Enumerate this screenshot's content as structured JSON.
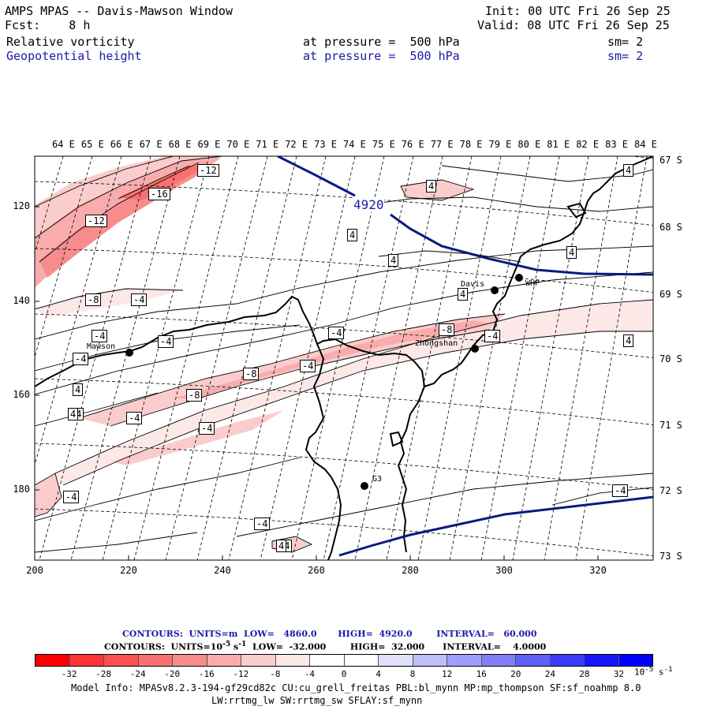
{
  "header": {
    "title": "AMPS MPAS -- Davis-Mawson Window",
    "fcst": "Fcst:    8 h",
    "init": "Init: 00 UTC Fri 26 Sep 25",
    "valid": "Valid: 08 UTC Fri 26 Sep 25",
    "field1_name": "Relative vorticity",
    "field1_level": "at pressure =  500 hPa",
    "field1_sm": "sm= 2",
    "field2_name": "Geopotential height",
    "field2_level": "at pressure =  500 hPa",
    "field2_sm": "sm= 2"
  },
  "map": {
    "lon_labels": [
      "64 E",
      "65 E",
      "66 E",
      "67 E",
      "68 E",
      "69 E",
      "70 E",
      "71 E",
      "72 E",
      "73 E",
      "74 E",
      "75 E",
      "76 E",
      "77 E",
      "78 E",
      "79 E",
      "80 E",
      "81 E",
      "82 E",
      "83 E",
      "84 E"
    ],
    "lat_labels": [
      "67 S",
      "68 S",
      "69 S",
      "70 S",
      "71 S",
      "72 S",
      "73 S"
    ],
    "x_ticks": [
      "200",
      "220",
      "240",
      "260",
      "280",
      "300",
      "320"
    ],
    "y_ticks": [
      "120",
      "140",
      "160",
      "180"
    ],
    "stations": [
      {
        "name": "Davis"
      },
      {
        "name": "WHP"
      },
      {
        "name": "Mawson"
      },
      {
        "name": "Zhongshan"
      },
      {
        "name": "G3"
      }
    ],
    "height_contour_label": "4920",
    "vorticity_labels": [
      "-12",
      "-16",
      "-12",
      "-8",
      "-4",
      "-4",
      "-4",
      "-4",
      "-4",
      "-4",
      "-4",
      "-8",
      "-8",
      "-8",
      "-4",
      "-4",
      "-4",
      "-4",
      "4",
      "4",
      "4",
      "4",
      "4",
      "4",
      "4",
      "4",
      "-4",
      "4",
      "-4",
      "-4",
      "4"
    ]
  },
  "legend": {
    "line1": "CONTOURS:  UNITS=m  LOW=   4860.0       HIGH=  4920.0        INTERVAL=   60.000",
    "line2_a": "CONTOURS:  UNITS=10",
    "line2_b": "-5",
    "line2_c": " s",
    "line2_d": "-1",
    "line2_e": "  LOW=  -32.000        HIGH=  32.000      INTERVAL=    4.0000",
    "colorbar_colors": [
      "#ff0000",
      "#ff3535",
      "#fe5050",
      "#f97070",
      "#f78c8c",
      "#f8acac",
      "#fbcccc",
      "#fde8e8",
      "#ffffff",
      "#ffffff",
      "#e0e0fa",
      "#bfbffa",
      "#9f9ffa",
      "#7f7ffa",
      "#5f5ffa",
      "#3a3aff",
      "#1515ff",
      "#0000ff"
    ],
    "colorbar_ticks": [
      "-32",
      "-28",
      "-24",
      "-20",
      "-16",
      "-12",
      "-8",
      "-4",
      "0",
      "4",
      "8",
      "12",
      "16",
      "20",
      "24",
      "28",
      "32"
    ],
    "colorbar_unit": "10",
    "colorbar_unit_exp": "-5",
    "colorbar_unit_s": " s",
    "colorbar_unit_s_exp": "-1"
  },
  "model_info": {
    "line1": "Model Info: MPASv8.2.3-194-gf29cd82c CU:cu_grell_freitas PBL:bl_mynn MP:mp_thompson SF:sf_noahmp 8.0",
    "line2": "LW:rrtmg_lw SW:rrtmg_sw SFLAY:sf_mynn"
  }
}
